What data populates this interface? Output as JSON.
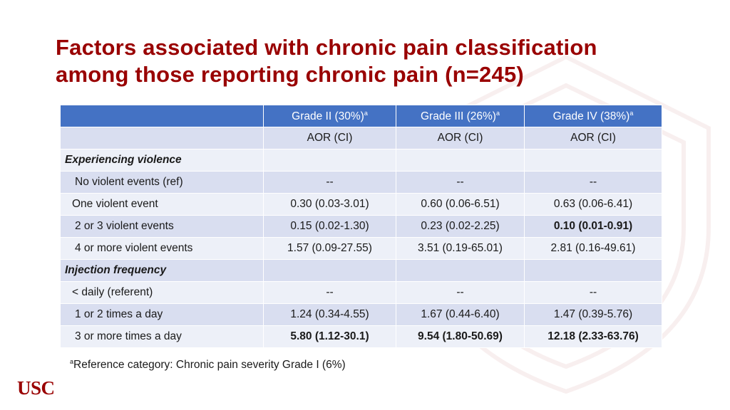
{
  "title": {
    "line1": "Factors associated with chronic pain classification",
    "line2": "among those reporting chronic pain (n=245)"
  },
  "table": {
    "headers": [
      {
        "text": "",
        "sup": ""
      },
      {
        "text": "Grade II (30%)",
        "sup": "a"
      },
      {
        "text": "Grade III (26%)",
        "sup": "a"
      },
      {
        "text": "Grade IV (38%)",
        "sup": "a"
      }
    ],
    "rows": [
      {
        "label": "",
        "cells": [
          "AOR (CI)",
          "AOR (CI)",
          "AOR (CI)"
        ],
        "style": "plain",
        "bold": [
          false,
          false,
          false
        ]
      },
      {
        "label": "Experiencing violence",
        "cells": [
          "",
          "",
          ""
        ],
        "style": "section",
        "bold": [
          false,
          false,
          false
        ]
      },
      {
        "label": "No violent events (ref)",
        "cells": [
          "--",
          "--",
          "--"
        ],
        "style": "ind1",
        "bold": [
          false,
          false,
          false
        ]
      },
      {
        "label": "One violent event",
        "cells": [
          "0.30 (0.03-3.01)",
          "0.60 (0.06-6.51)",
          "0.63 (0.06-6.41)"
        ],
        "style": "ind2",
        "bold": [
          false,
          false,
          false
        ]
      },
      {
        "label": "2 or 3  violent events",
        "cells": [
          "0.15 (0.02-1.30)",
          "0.23 (0.02-2.25)",
          "0.10 (0.01-0.91)"
        ],
        "style": "ind1",
        "bold": [
          false,
          false,
          true
        ]
      },
      {
        "label": "4 or more violent events",
        "cells": [
          "1.57 (0.09-27.55)",
          "3.51 (0.19-65.01)",
          "2.81 (0.16-49.61)"
        ],
        "style": "ind1",
        "bold": [
          false,
          false,
          false
        ]
      },
      {
        "label": "Injection frequency",
        "cells": [
          "",
          "",
          ""
        ],
        "style": "section",
        "bold": [
          false,
          false,
          false
        ]
      },
      {
        "label": "< daily (referent)",
        "cells": [
          "--",
          "--",
          "--"
        ],
        "style": "ind2",
        "bold": [
          false,
          false,
          false
        ]
      },
      {
        "label": "1 or 2 times a day",
        "cells": [
          "1.24 (0.34-4.55)",
          "1.67 (0.44-6.40)",
          "1.47 (0.39-5.76)"
        ],
        "style": "ind1",
        "bold": [
          false,
          false,
          false
        ]
      },
      {
        "label": "3 or more times a day",
        "cells": [
          "5.80 (1.12-30.1)",
          "9.54 (1.80-50.69)",
          "12.18 (2.33-63.76)"
        ],
        "style": "ind1",
        "bold": [
          true,
          true,
          true
        ]
      }
    ]
  },
  "footnote": {
    "sup": "a",
    "text": "Reference category: Chronic pain severity Grade I (6%)"
  },
  "logo": {
    "text": "USC"
  },
  "colors": {
    "title": "#990000",
    "header_bg": "#4472c4",
    "row_even": "#d9def0",
    "row_odd": "#edf0f8",
    "logo": "#990000"
  }
}
